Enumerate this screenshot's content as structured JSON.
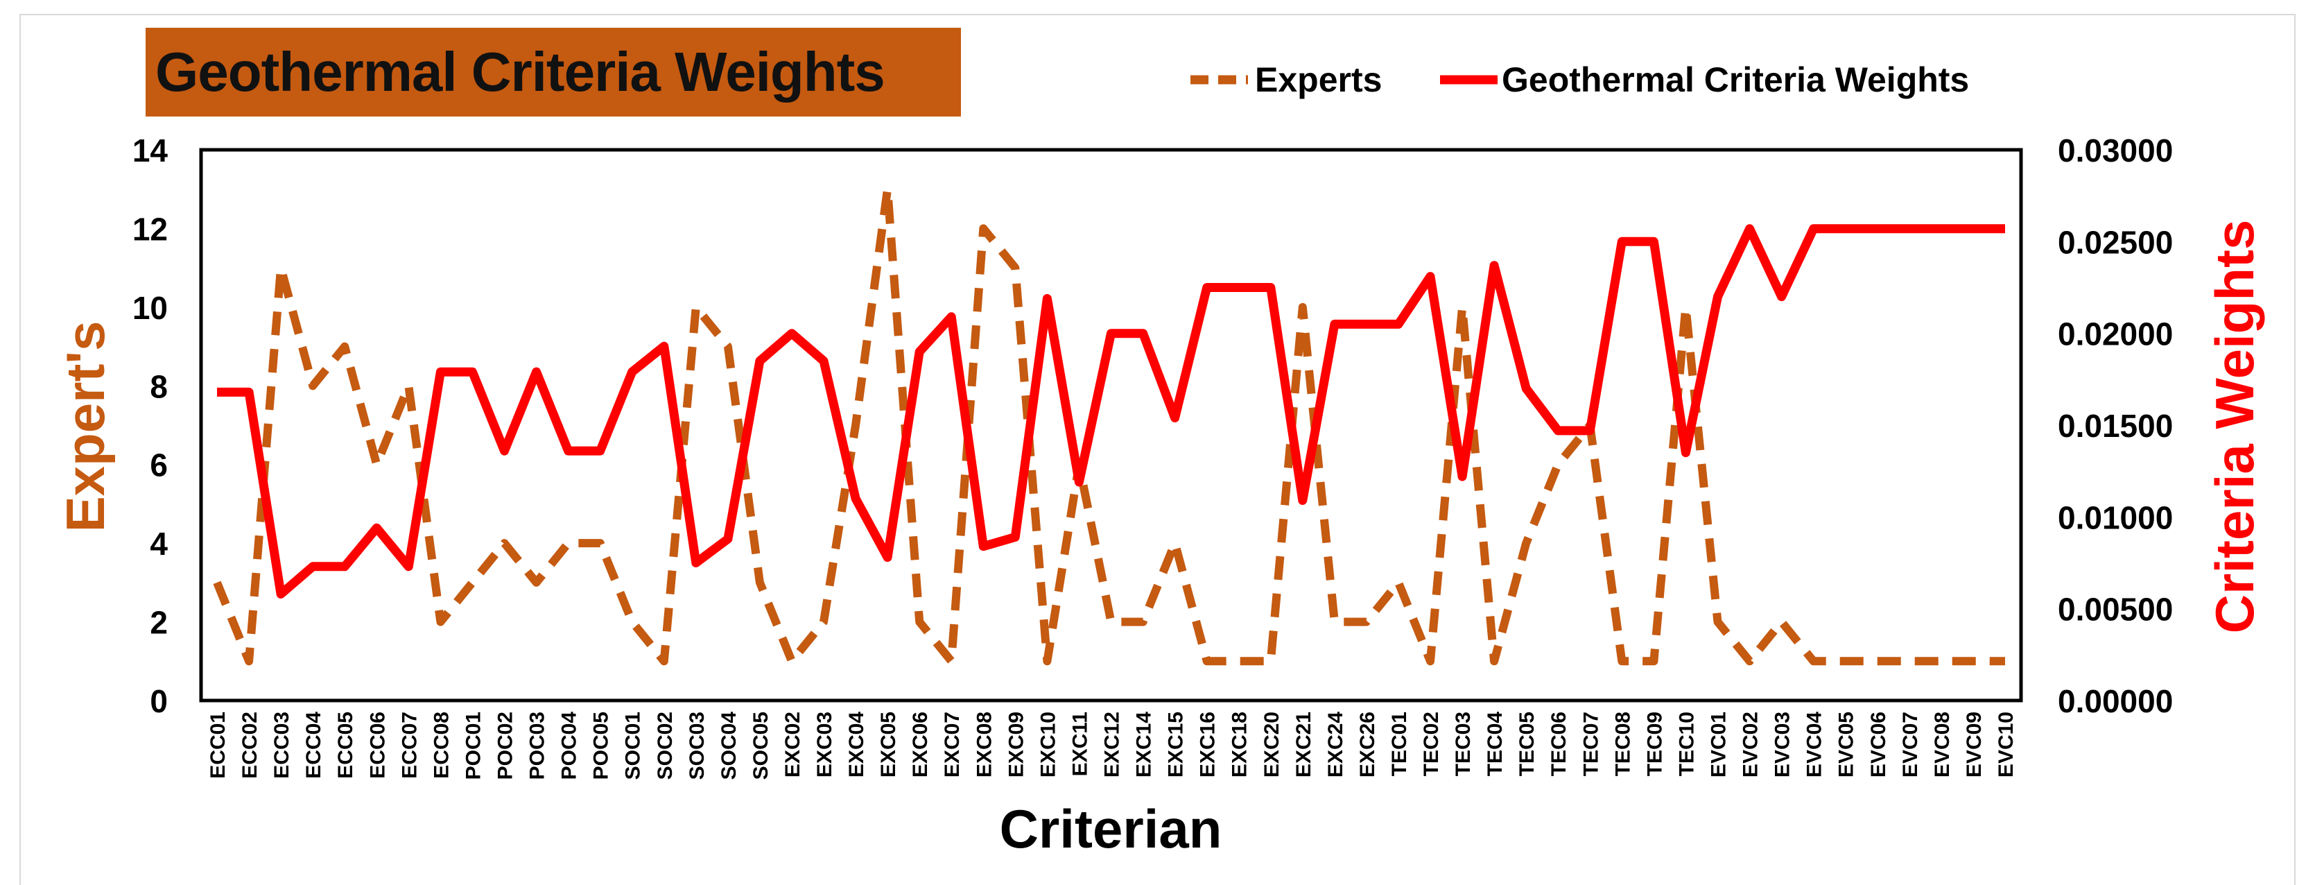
{
  "chart_data": {
    "type": "line",
    "title": "Geothermal Criteria Weights",
    "xlabel": "Criterian",
    "ylabel_left": "Expert's",
    "ylabel_right": "Criteria Weights",
    "ylim_left": [
      0,
      14
    ],
    "ylim_right": [
      0,
      0.03
    ],
    "yticks_left": [
      "0",
      "2",
      "4",
      "6",
      "8",
      "10",
      "12",
      "14"
    ],
    "yticks_right": [
      "0.00000",
      "0.00500",
      "0.01000",
      "0.01500",
      "0.02000",
      "0.02500",
      "0.03000"
    ],
    "legend_position": "top-right",
    "categories": [
      "ECC01",
      "ECC02",
      "ECC03",
      "ECC04",
      "ECC05",
      "ECC06",
      "ECC07",
      "ECC08",
      "POC01",
      "POC02",
      "POC03",
      "POC04",
      "POC05",
      "SOC01",
      "SOC02",
      "SOC03",
      "SOC04",
      "SOC05",
      "EXC02",
      "EXC03",
      "EXC04",
      "EXC05",
      "EXC06",
      "EXC07",
      "EXC08",
      "EXC09",
      "EXC10",
      "EXC11",
      "EXC12",
      "EXC14",
      "EXC15",
      "EXC16",
      "EXC18",
      "EXC20",
      "EXC21",
      "EXC24",
      "EXC26",
      "TEC01",
      "TEC02",
      "TEC03",
      "TEC04",
      "TEC05",
      "TEC06",
      "TEC07",
      "TEC08",
      "TEC09",
      "TEC10",
      "EVC01",
      "EVC02",
      "EVC03",
      "EVC04",
      "EVC05",
      "EVC06",
      "EVC07",
      "EVC08",
      "EVC09",
      "EVC10"
    ],
    "series": [
      {
        "name": "Experts",
        "axis": "left",
        "color": "#c55a11",
        "style": "dashed",
        "values": [
          3,
          1,
          11,
          8,
          9,
          6,
          8,
          2,
          3,
          4,
          3,
          4,
          4,
          2,
          1,
          10,
          9,
          3,
          1,
          2,
          7,
          13,
          2,
          1,
          12,
          11,
          1,
          6,
          2,
          2,
          4,
          1,
          1,
          1,
          10,
          2,
          2,
          3,
          1,
          10,
          1,
          4,
          6,
          7,
          1,
          1,
          10,
          2,
          1,
          2,
          1,
          1,
          1,
          1,
          1,
          1,
          1
        ]
      },
      {
        "name": "Geothermal Criteria Weights",
        "axis": "right",
        "color": "#ff0000",
        "style": "solid",
        "values": [
          0.0168,
          0.0168,
          0.0058,
          0.0073,
          0.0073,
          0.0094,
          0.0073,
          0.0179,
          0.0179,
          0.0136,
          0.0179,
          0.0136,
          0.0136,
          0.0179,
          0.0193,
          0.0075,
          0.0088,
          0.0185,
          0.02,
          0.0185,
          0.011,
          0.0078,
          0.019,
          0.0209,
          0.0084,
          0.0089,
          0.0219,
          0.0119,
          0.02,
          0.02,
          0.0154,
          0.0225,
          0.0225,
          0.0225,
          0.0109,
          0.0205,
          0.0205,
          0.0205,
          0.0231,
          0.0122,
          0.0237,
          0.017,
          0.0147,
          0.0147,
          0.025,
          0.025,
          0.0135,
          0.022,
          0.0257,
          0.022,
          0.0257,
          0.0257,
          0.0257,
          0.0257,
          0.0257,
          0.0257,
          0.0257
        ]
      }
    ]
  }
}
